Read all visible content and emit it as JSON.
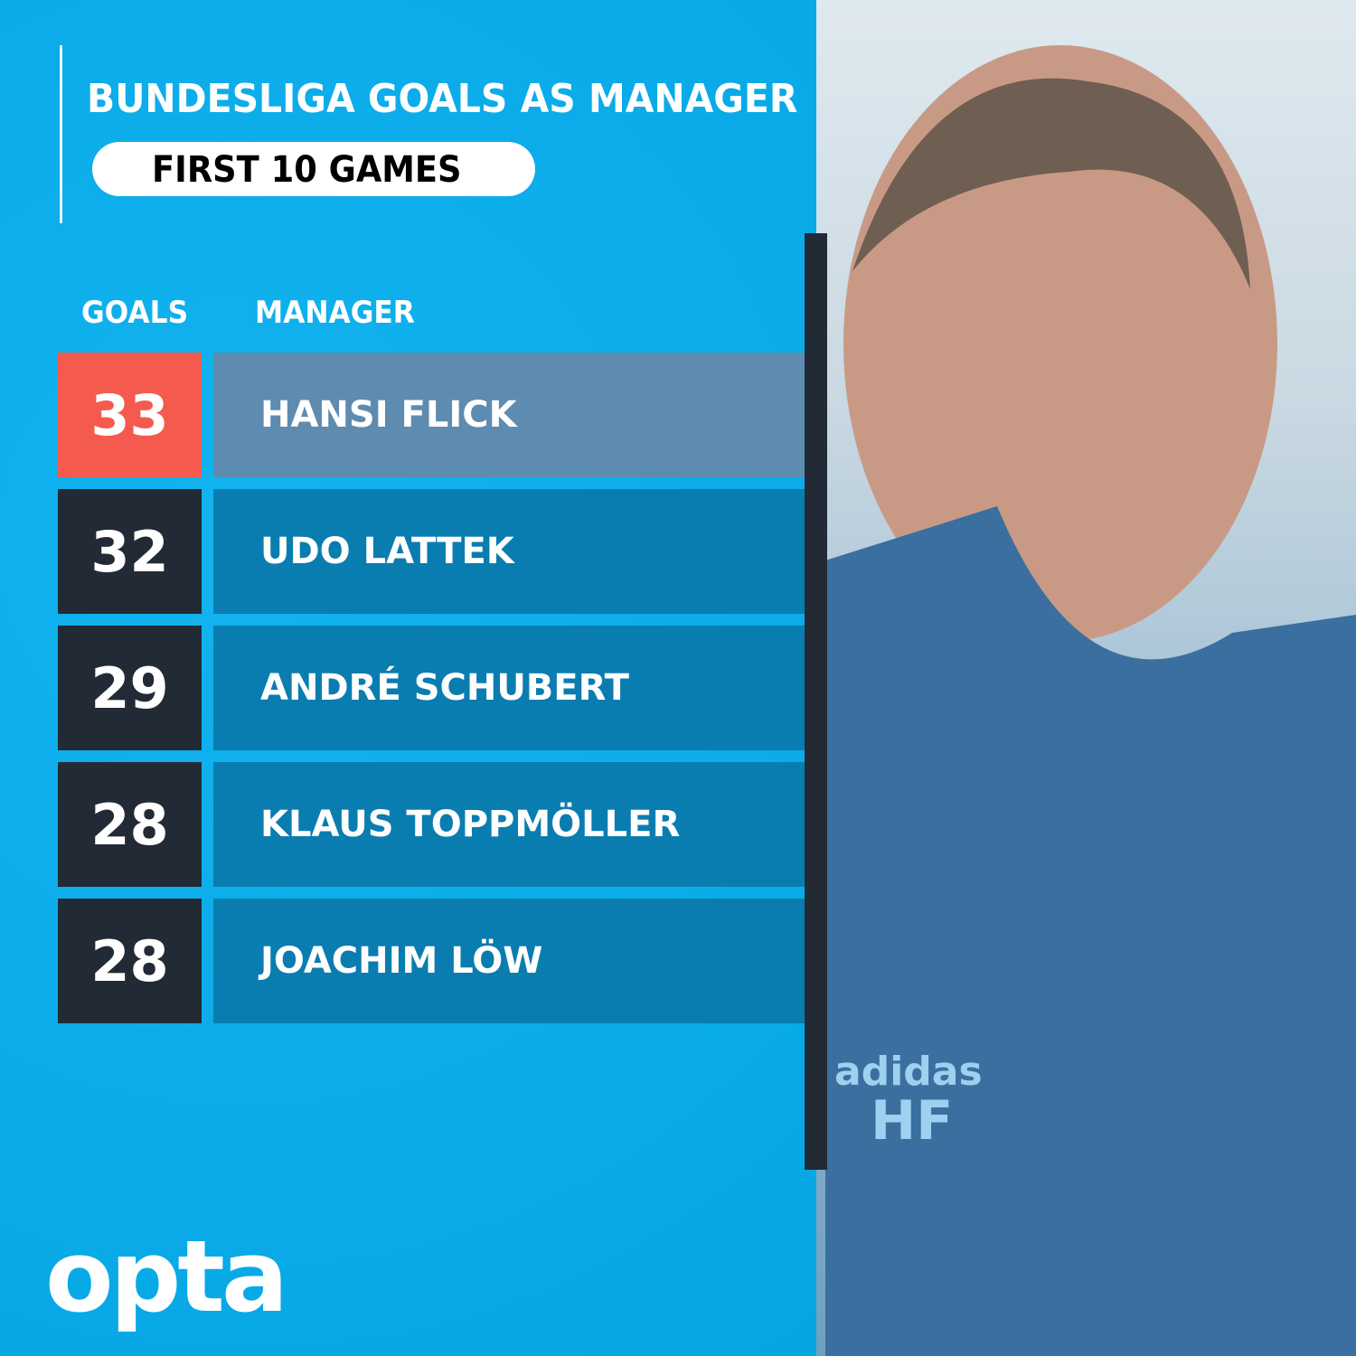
{
  "header": {
    "title": "BUNDESLIGA GOALS AS MANAGER",
    "subtitle": "FIRST 10 GAMES"
  },
  "chart_data": {
    "type": "table",
    "columns": [
      "GOALS",
      "MANAGER"
    ],
    "rows": [
      {
        "goals": "33",
        "manager": "HANSI FLICK",
        "highlight": true
      },
      {
        "goals": "32",
        "manager": "UDO LATTEK",
        "highlight": false
      },
      {
        "goals": "29",
        "manager": "ANDRÉ SCHUBERT",
        "highlight": false
      },
      {
        "goals": "28",
        "manager": "KLAUS TOPPMÖLLER",
        "highlight": false
      },
      {
        "goals": "28",
        "manager": "JOACHIM LÖW",
        "highlight": false
      }
    ]
  },
  "colors": {
    "background": "#0aaeea",
    "highlight_goal": "#f45b4e",
    "highlight_name": "#5e8bb0",
    "goal_box": "#222a35",
    "name_box": "#0a7db0"
  },
  "photo": {
    "jacket_text": "HF",
    "brand_text": "adidas"
  },
  "logo": {
    "text": "opta"
  }
}
